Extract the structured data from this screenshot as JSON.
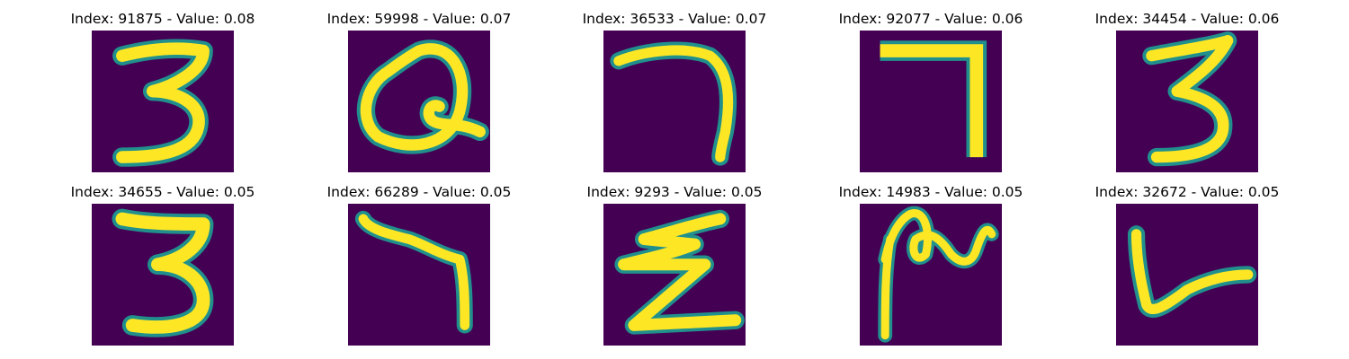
{
  "colors": {
    "background": "#440154",
    "mid": "#21908d",
    "stroke": "#fde725"
  },
  "panels": [
    {
      "index": "91875",
      "value": "0.08",
      "title": "Index: 91875 - Value: 0.08",
      "digit_shape": "3"
    },
    {
      "index": "59998",
      "value": "0.07",
      "title": "Index: 59998 - Value: 0.07",
      "digit_shape": "looped-2"
    },
    {
      "index": "36533",
      "value": "0.07",
      "title": "Index: 36533 - Value: 0.07",
      "digit_shape": "7"
    },
    {
      "index": "92077",
      "value": "0.06",
      "title": "Index: 92077 - Value: 0.06",
      "digit_shape": "7"
    },
    {
      "index": "34454",
      "value": "0.06",
      "title": "Index: 34454 - Value: 0.06",
      "digit_shape": "3"
    },
    {
      "index": "34655",
      "value": "0.05",
      "title": "Index: 34655 - Value: 0.05",
      "digit_shape": "3"
    },
    {
      "index": "66289",
      "value": "0.05",
      "title": "Index: 66289 - Value: 0.05",
      "digit_shape": "7"
    },
    {
      "index": "9293",
      "value": "0.05",
      "title": "Index: 9293 - Value: 0.05",
      "digit_shape": "z-2"
    },
    {
      "index": "14983",
      "value": "0.05",
      "title": "Index: 14983 - Value: 0.05",
      "digit_shape": "scribble"
    },
    {
      "index": "32672",
      "value": "0.05",
      "title": "Index: 32672 - Value: 0.05",
      "digit_shape": "v"
    }
  ]
}
